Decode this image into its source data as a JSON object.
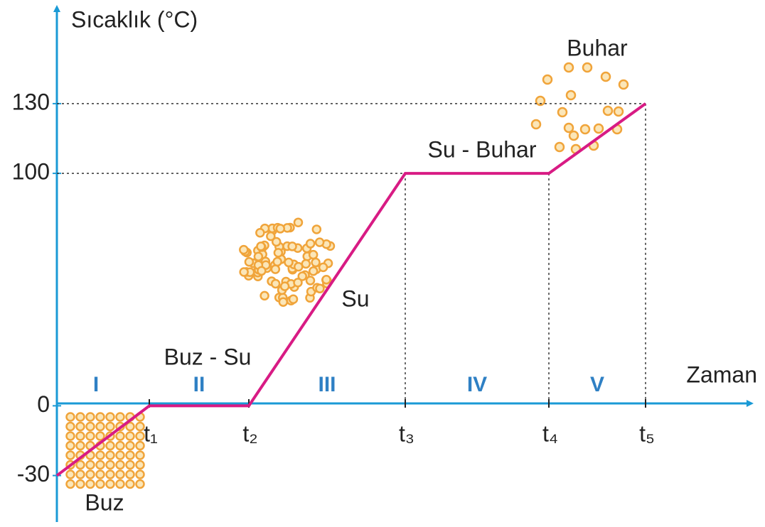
{
  "chart_data": {
    "type": "line",
    "y_label": "Sıcaklık (°C)",
    "x_label": "Zaman",
    "categories": [
      null,
      "t₁",
      "t₂",
      "t₃",
      "t₄",
      "t₅"
    ],
    "values": [
      -30,
      0,
      0,
      100,
      100,
      130
    ],
    "color": "#d81b84",
    "ylim": [
      -50,
      170
    ],
    "yticks": [
      -30,
      0,
      100,
      130
    ],
    "regions": [
      "I",
      "II",
      "III",
      "IV",
      "V"
    ],
    "phases": [
      "Buz",
      "Buz - Su",
      "Su",
      "Su - Buhar",
      "Buhar"
    ]
  }
}
